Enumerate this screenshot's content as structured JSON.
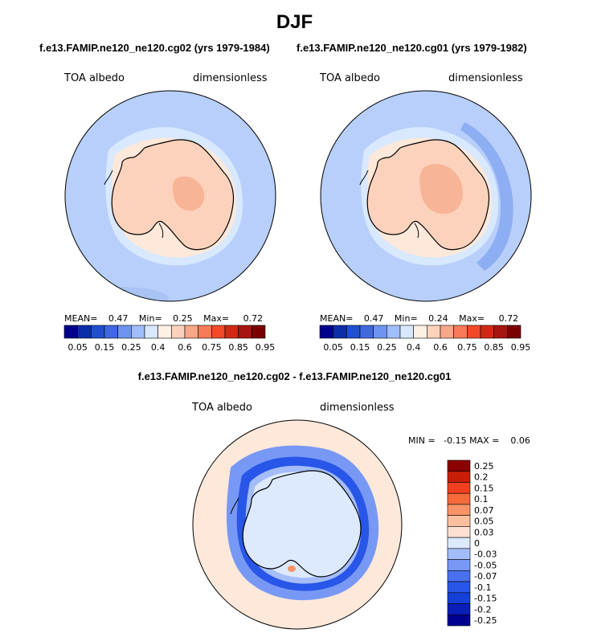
{
  "title": "DJF",
  "colors": {
    "abs_scale": [
      "#00008b",
      "#0a2ea8",
      "#2050d0",
      "#4068e0",
      "#6e94ef",
      "#a0beff",
      "#d8e8ff",
      "#fff0e4",
      "#fcd2bc",
      "#f8a888",
      "#f67a55",
      "#f24a28",
      "#d02a14",
      "#a81410",
      "#7a0000"
    ],
    "diff_scale": [
      "#000090",
      "#0a1eb8",
      "#1440d8",
      "#2856e8",
      "#4a70f0",
      "#7898f5",
      "#a4bdfa",
      "#dce9ff",
      "#fde0d2",
      "#fbbf9e",
      "#f89468",
      "#f56b3c",
      "#ee4020",
      "#c81e08",
      "#8b0000"
    ],
    "ocean": "#b7cffa",
    "land": "#fcd2bc",
    "coast": "#000000"
  },
  "panels": [
    {
      "subtitle": "f.e13.FAMIP.ne120_ne120.cg02 (yrs 1979-1984)",
      "left_label": "TOA albedo",
      "right_label": "dimensionless",
      "stats": {
        "mean_label": "MEAN=",
        "mean": "0.47",
        "min_label": "Min=",
        "min": "0.25",
        "max_label": "Max=",
        "max": "0.72"
      }
    },
    {
      "subtitle": "f.e13.FAMIP.ne120_ne120.cg01 (yrs 1979-1982)",
      "left_label": "TOA albedo",
      "right_label": "dimensionless",
      "stats": {
        "mean_label": "MEAN=",
        "mean": "0.47",
        "min_label": "Min=",
        "min": "0.24",
        "max_label": "Max=",
        "max": "0.72"
      }
    }
  ],
  "diff": {
    "subtitle": "f.e13.FAMIP.ne120_ne120.cg02 - f.e13.FAMIP.ne120_ne120.cg01",
    "left_label": "TOA albedo",
    "right_label": "dimensionless",
    "minmax_text": "MIN =   -0.15 MAX =    0.06"
  },
  "chart_data": [
    {
      "type": "heatmap",
      "projection": "south-polar-stereographic",
      "title": "f.e13.FAMIP.ne120_ne120.cg02 (yrs 1979-1984)",
      "variable": "TOA albedo",
      "units": "dimensionless",
      "mean": 0.47,
      "min": 0.25,
      "max": 0.72,
      "colorbar_ticks": [
        "0.05",
        "0.15",
        "0.25",
        "0.4",
        "0.6",
        "0.75",
        "0.85",
        "0.95"
      ]
    },
    {
      "type": "heatmap",
      "projection": "south-polar-stereographic",
      "title": "f.e13.FAMIP.ne120_ne120.cg01 (yrs 1979-1982)",
      "variable": "TOA albedo",
      "units": "dimensionless",
      "mean": 0.47,
      "min": 0.24,
      "max": 0.72,
      "colorbar_ticks": [
        "0.05",
        "0.15",
        "0.25",
        "0.4",
        "0.6",
        "0.75",
        "0.85",
        "0.95"
      ]
    },
    {
      "type": "heatmap",
      "projection": "south-polar-stereographic",
      "title": "f.e13.FAMIP.ne120_ne120.cg02 - f.e13.FAMIP.ne120_ne120.cg01",
      "variable": "TOA albedo",
      "units": "dimensionless",
      "min": -0.15,
      "max": 0.06,
      "colorbar_ticks": [
        "0.25",
        "0.2",
        "0.15",
        "0.1",
        "0.07",
        "0.05",
        "0.03",
        "0",
        "-0.03",
        "-0.05",
        "-0.07",
        "-0.1",
        "-0.15",
        "-0.2",
        "-0.25"
      ]
    }
  ]
}
